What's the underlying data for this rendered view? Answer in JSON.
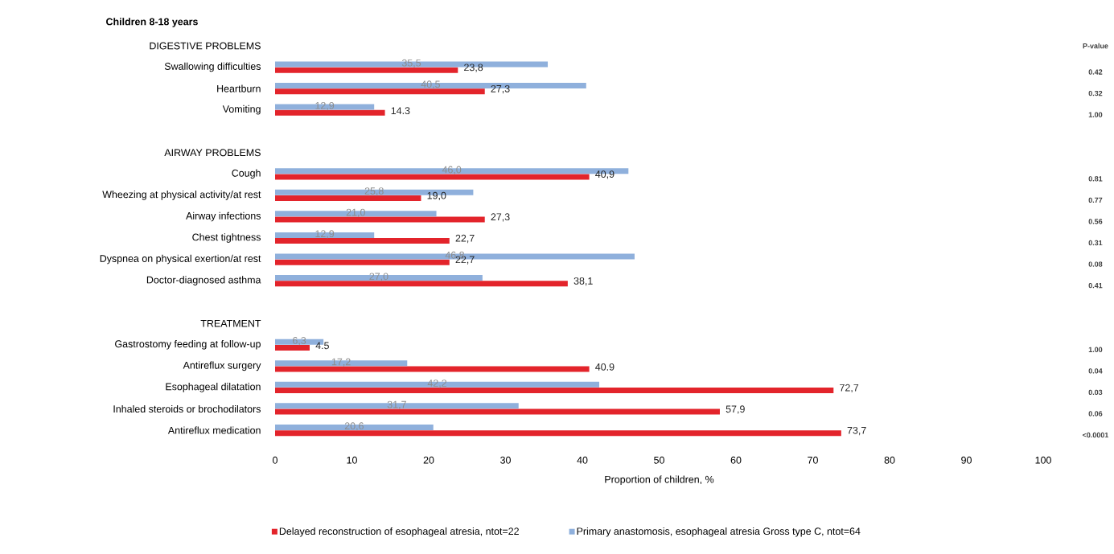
{
  "chart_data": {
    "type": "bar",
    "orientation": "horizontal",
    "title": "Children 8-18 years",
    "xlabel": "Proportion of children, %",
    "categories": [
      "DIGESTIVE PROBLEMS",
      "Swallowing difficulties",
      "Heartburn",
      "Vomiting",
      null,
      "AIRWAY PROBLEMS",
      "Cough",
      "Wheezing at physical activity/at rest",
      "Airway infections",
      "Chest tightness",
      "Dyspnea on physical exertion/at rest",
      "Doctor-diagnosed asthma",
      null,
      "TREATMENT",
      "Gastrostomy feeding at follow-up",
      "Antireflux surgery",
      "Esophageal dilatation",
      "Inhaled steroids or brochodilators",
      "Antireflux medication"
    ],
    "series": [
      {
        "name": "Delayed reconstruction of esophageal atresia, ntot=22",
        "color": "#e3242b",
        "values": [
          null,
          23.8,
          27.3,
          14.3,
          null,
          null,
          40.9,
          19.0,
          27.3,
          22.7,
          22.7,
          38.1,
          null,
          null,
          4.5,
          40.9,
          72.7,
          57.9,
          73.7
        ],
        "value_labels": [
          null,
          "23,8",
          "27,3",
          "14.3",
          null,
          null,
          "40,9",
          "19,0",
          "27,3",
          "22,7",
          "22,7",
          "38,1",
          null,
          null,
          "4.5",
          "40.9",
          "72,7",
          "57,9",
          "73,7"
        ]
      },
      {
        "name": "Primary anastomosis, esophageal atresia Gross type C, ntot=64",
        "color": "#8fb0dc",
        "values": [
          null,
          35.5,
          40.5,
          12.9,
          null,
          null,
          46.0,
          25.8,
          21.0,
          12.9,
          46.8,
          27.0,
          null,
          null,
          6.3,
          17.2,
          42.2,
          31.7,
          20.6
        ],
        "value_labels": [
          null,
          "35,5",
          "40,5",
          "12,9",
          null,
          null,
          "46,0",
          "25,8",
          "21,0",
          "12,9",
          "46,8",
          "27,0",
          null,
          null,
          "6,3",
          "17,2",
          "42,2",
          "31,7",
          "20,6"
        ]
      }
    ],
    "xlim": [
      0,
      100
    ],
    "xticks": [
      0,
      10,
      20,
      30,
      40,
      50,
      60,
      70,
      80,
      90,
      100
    ],
    "legend": "bottom",
    "annotations": [
      "P-value",
      "0.42",
      "0.32",
      "1.00",
      "0.81",
      "0.77",
      "0.56",
      "0.31",
      "0.08",
      "0.41",
      "1.00",
      "0.04",
      "0.03",
      "0.06",
      "<0.0001"
    ]
  }
}
